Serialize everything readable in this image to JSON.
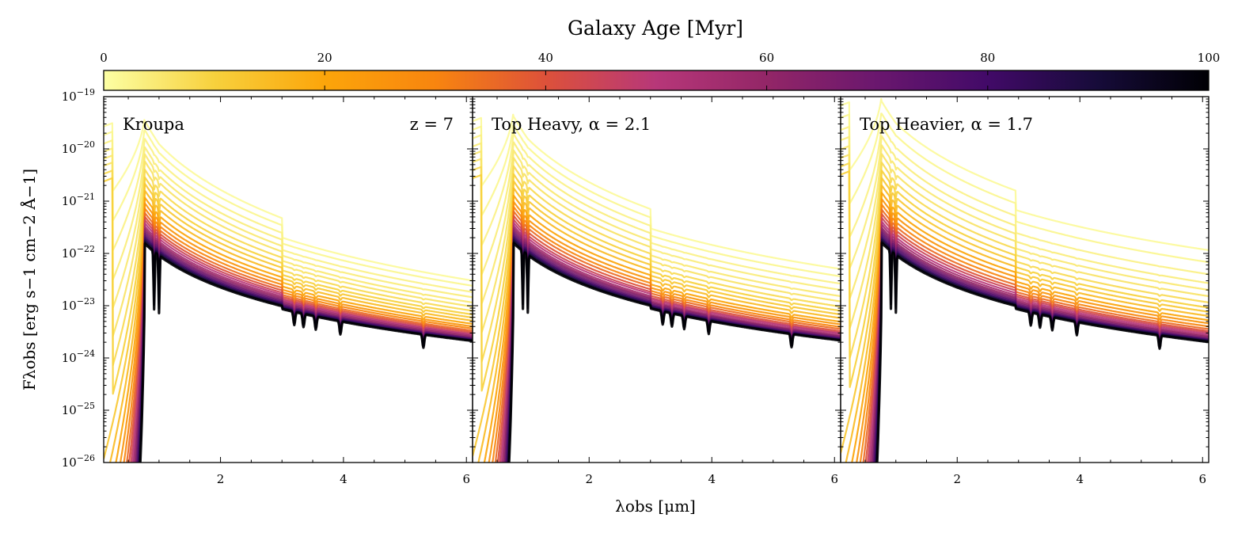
{
  "colorbar": {
    "title": "Galaxy Age [Myr]",
    "ticks": [
      0,
      20,
      40,
      60,
      80,
      100
    ],
    "tick_labels": [
      "0",
      "20",
      "40",
      "60",
      "80",
      "100"
    ],
    "range": [
      0,
      100
    ],
    "colormap": "inferno_r",
    "stops": [
      "#fcffa4",
      "#f7d13d",
      "#fca50a",
      "#f8850f",
      "#dd513a",
      "#b73779",
      "#932667",
      "#6a176e",
      "#420a68",
      "#160b39",
      "#000004"
    ]
  },
  "axes": {
    "xlabel": "λobs [μm]",
    "ylabel": "Fλobs [erg s−1 cm−2 Å−1]",
    "xlim": [
      0.1,
      6.1
    ],
    "ylim_log10": [
      -26,
      -19
    ],
    "yscale": "log",
    "x_ticks": [
      2,
      4,
      6
    ],
    "x_tick_labels": [
      "2",
      "4",
      "6"
    ],
    "y_ticks_log10": [
      -26,
      -25,
      -24,
      -23,
      -22,
      -21,
      -20,
      -19
    ],
    "y_tick_labels": [
      "10−26",
      "10−25",
      "10−24",
      "10−23",
      "10−22",
      "10−21",
      "10−20",
      "10−19"
    ]
  },
  "chart_data": [
    {
      "type": "line",
      "panel_label": "Kroupa",
      "annotation": "z = 7",
      "break_um": 0.77,
      "balmer_um": 3.0,
      "series_age_myr": [
        1,
        2,
        3,
        4,
        5,
        6,
        8,
        10,
        12,
        15,
        20,
        25,
        30,
        35,
        40,
        45,
        50,
        55,
        60,
        65,
        70,
        75,
        80,
        85,
        90,
        95,
        100
      ],
      "log_flux_at_1um": [
        -20.42,
        -20.55,
        -20.68,
        -20.8,
        -20.9,
        -21.0,
        -21.12,
        -21.23,
        -21.32,
        -21.42,
        -21.52,
        -21.6,
        -21.67,
        -21.73,
        -21.78,
        -21.82,
        -21.86,
        -21.9,
        -21.93,
        -21.96,
        -21.99,
        -22.02,
        -22.04,
        -22.06,
        -22.08,
        -22.1,
        -22.12
      ],
      "log_flux_at_6um": [
        -22.5,
        -22.6,
        -22.72,
        -22.82,
        -22.92,
        -23.0,
        -23.08,
        -23.15,
        -23.21,
        -23.27,
        -23.33,
        -23.38,
        -23.42,
        -23.46,
        -23.49,
        -23.52,
        -23.54,
        -23.56,
        -23.58,
        -23.6,
        -23.61,
        -23.62,
        -23.63,
        -23.64,
        -23.65,
        -23.65,
        -23.66
      ]
    },
    {
      "type": "line",
      "panel_label": "Top Heavy, α = 2.1",
      "annotation": "",
      "break_um": 0.77,
      "balmer_um": 3.0,
      "series_age_myr": [
        1,
        2,
        3,
        4,
        5,
        6,
        8,
        10,
        12,
        15,
        20,
        25,
        30,
        35,
        40,
        45,
        50,
        55,
        60,
        65,
        70,
        75,
        80,
        85,
        90,
        95,
        100
      ],
      "log_flux_at_1um": [
        -20.32,
        -20.45,
        -20.58,
        -20.7,
        -20.82,
        -20.93,
        -21.05,
        -21.17,
        -21.27,
        -21.37,
        -21.48,
        -21.57,
        -21.64,
        -21.7,
        -21.76,
        -21.81,
        -21.85,
        -21.89,
        -21.92,
        -21.95,
        -21.98,
        -22.01,
        -22.03,
        -22.05,
        -22.07,
        -22.09,
        -22.11
      ],
      "log_flux_at_6um": [
        -22.28,
        -22.42,
        -22.56,
        -22.68,
        -22.8,
        -22.9,
        -23.0,
        -23.08,
        -23.15,
        -23.22,
        -23.29,
        -23.34,
        -23.39,
        -23.43,
        -23.47,
        -23.5,
        -23.52,
        -23.55,
        -23.57,
        -23.58,
        -23.6,
        -23.61,
        -23.62,
        -23.63,
        -23.64,
        -23.64,
        -23.65
      ]
    },
    {
      "type": "line",
      "panel_label": "Top Heavier, α = 1.7",
      "annotation": "",
      "break_um": 0.77,
      "balmer_um": 2.95,
      "series_age_myr": [
        1,
        2,
        3,
        4,
        5,
        6,
        8,
        10,
        12,
        15,
        20,
        25,
        30,
        35,
        40,
        45,
        50,
        55,
        60,
        65,
        70,
        75,
        80,
        85,
        90,
        95,
        100
      ],
      "log_flux_at_1um": [
        -20.02,
        -20.22,
        -20.42,
        -20.58,
        -20.72,
        -20.85,
        -20.98,
        -21.1,
        -21.21,
        -21.32,
        -21.43,
        -21.52,
        -21.6,
        -21.67,
        -21.73,
        -21.78,
        -21.83,
        -21.87,
        -21.91,
        -21.94,
        -21.97,
        -22.0,
        -22.03,
        -22.05,
        -22.07,
        -22.09,
        -22.11
      ],
      "log_flux_at_6um": [
        -21.92,
        -22.15,
        -22.38,
        -22.55,
        -22.68,
        -22.8,
        -22.92,
        -23.02,
        -23.1,
        -23.18,
        -23.26,
        -23.32,
        -23.38,
        -23.43,
        -23.47,
        -23.5,
        -23.53,
        -23.56,
        -23.58,
        -23.6,
        -23.62,
        -23.63,
        -23.64,
        -23.65,
        -23.66,
        -23.67,
        -23.68
      ]
    }
  ]
}
